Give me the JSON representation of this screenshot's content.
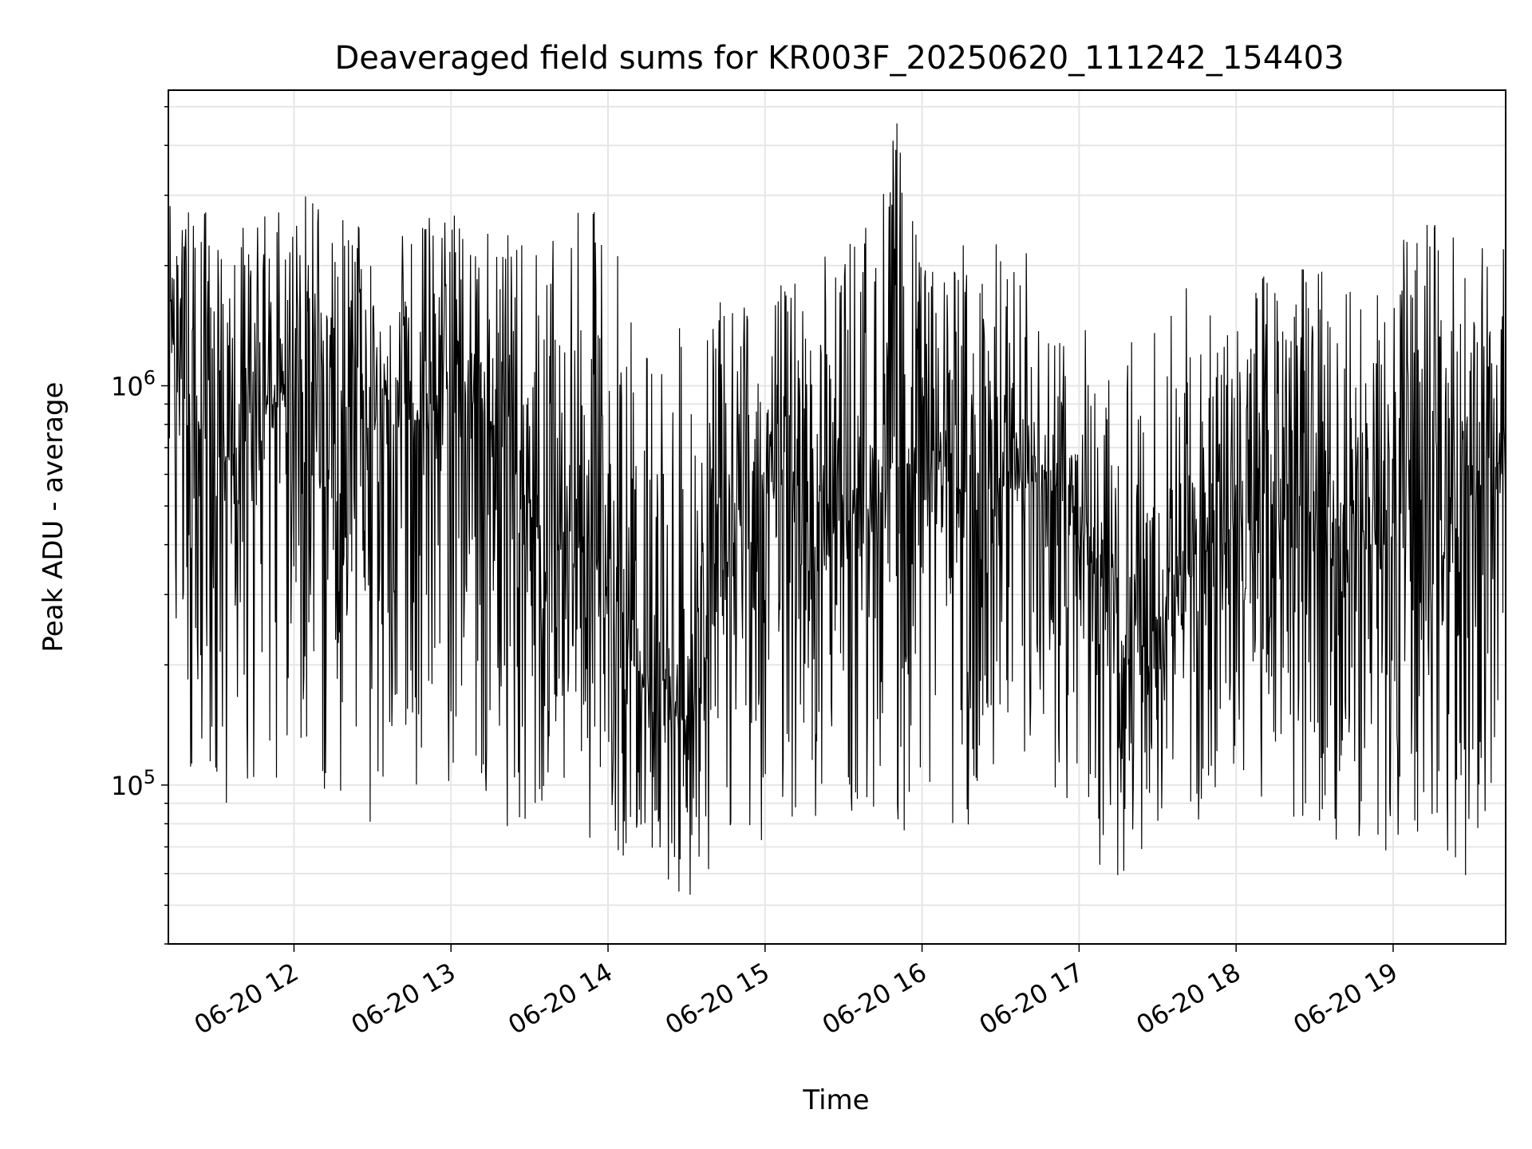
{
  "chart_data": {
    "type": "line",
    "title": "Deaveraged field sums for KR003F_20250620_111242_154403",
    "xlabel": "Time",
    "ylabel": "Peak ADU - average",
    "yscale": "log",
    "ylim": [
      40000,
      5500000
    ],
    "xlim": [
      "2025-06-20 11:12",
      "2025-06-20 19:43"
    ],
    "grid": true,
    "x_ticks": [
      {
        "value": "2025-06-20 12:00",
        "label": "06-20 12"
      },
      {
        "value": "2025-06-20 13:00",
        "label": "06-20 13"
      },
      {
        "value": "2025-06-20 14:00",
        "label": "06-20 14"
      },
      {
        "value": "2025-06-20 15:00",
        "label": "06-20 15"
      },
      {
        "value": "2025-06-20 16:00",
        "label": "06-20 16"
      },
      {
        "value": "2025-06-20 17:00",
        "label": "06-20 17"
      },
      {
        "value": "2025-06-20 18:00",
        "label": "06-20 18"
      },
      {
        "value": "2025-06-20 19:00",
        "label": "06-20 19"
      }
    ],
    "y_ticks": [
      {
        "value": 100000,
        "base": "10",
        "exp": "5"
      },
      {
        "value": 1000000,
        "base": "10",
        "exp": "6"
      }
    ],
    "line_color": "#000000",
    "series": [
      {
        "x": [
          "2025-06-20 11:12",
          "2025-06-20 11:20",
          "2025-06-20 11:30",
          "2025-06-20 11:40",
          "2025-06-20 11:50",
          "2025-06-20 12:00",
          "2025-06-20 12:10",
          "2025-06-20 12:20",
          "2025-06-20 12:30",
          "2025-06-20 12:40",
          "2025-06-20 12:50",
          "2025-06-20 13:00",
          "2025-06-20 13:10",
          "2025-06-20 13:20",
          "2025-06-20 13:30",
          "2025-06-20 13:40",
          "2025-06-20 13:50",
          "2025-06-20 14:00",
          "2025-06-20 14:10",
          "2025-06-20 14:20",
          "2025-06-20 14:30",
          "2025-06-20 14:40",
          "2025-06-20 14:50",
          "2025-06-20 15:00",
          "2025-06-20 15:10",
          "2025-06-20 15:20",
          "2025-06-20 15:30",
          "2025-06-20 15:40",
          "2025-06-20 15:50",
          "2025-06-20 16:00",
          "2025-06-20 16:10",
          "2025-06-20 16:20",
          "2025-06-20 16:30",
          "2025-06-20 16:40",
          "2025-06-20 16:50",
          "2025-06-20 17:00",
          "2025-06-20 17:10",
          "2025-06-20 17:20",
          "2025-06-20 17:30",
          "2025-06-20 17:40",
          "2025-06-20 17:50",
          "2025-06-20 18:00",
          "2025-06-20 18:10",
          "2025-06-20 18:20",
          "2025-06-20 18:30",
          "2025-06-20 18:40",
          "2025-06-20 18:50",
          "2025-06-20 19:00",
          "2025-06-20 19:10",
          "2025-06-20 19:20",
          "2025-06-20 19:30",
          "2025-06-20 19:43"
        ],
        "values": [
          1400000,
          800000,
          600000,
          700000,
          900000,
          1000000,
          1100000,
          900000,
          800000,
          850000,
          800000,
          1000000,
          900000,
          700000,
          500000,
          400000,
          450000,
          300000,
          200000,
          180000,
          150000,
          250000,
          450000,
          550000,
          600000,
          500000,
          450000,
          500000,
          600000,
          700000,
          600000,
          500000,
          550000,
          550000,
          600000,
          400000,
          300000,
          200000,
          250000,
          350000,
          400000,
          450000,
          550000,
          550000,
          500000,
          450000,
          400000,
          400000,
          500000,
          450000,
          600000,
          650000
        ],
        "min": [
          400000,
          100000,
          70000,
          100000,
          100000,
          100000,
          80000,
          100000,
          70000,
          100000,
          100000,
          100000,
          90000,
          80000,
          70000,
          100000,
          80000,
          60000,
          70000,
          60000,
          50000,
          60000,
          80000,
          70000,
          80000,
          80000,
          80000,
          80000,
          70000,
          90000,
          80000,
          70000,
          70000,
          80000,
          90000,
          90000,
          50000,
          60000,
          80000,
          90000,
          60000,
          80000,
          90000,
          80000,
          80000,
          70000,
          70000,
          60000,
          70000,
          70000,
          50000,
          170000
        ],
        "max": [
          2900000,
          2800000,
          2800000,
          2600000,
          2800000,
          3400000,
          3000000,
          2600000,
          2500000,
          2400000,
          2700000,
          2900000,
          2500000,
          2400000,
          2400000,
          2300000,
          2800000,
          2900000,
          1600000,
          1400000,
          1400000,
          1600000,
          1700000,
          1800000,
          1900000,
          2000000,
          2600000,
          2700000,
          4900000,
          2000000,
          2000000,
          3000000,
          2200000,
          2200000,
          1400000,
          1400000,
          1600000,
          1500000,
          1500000,
          1900000,
          1500000,
          1500000,
          2000000,
          2200000,
          2000000,
          2500000,
          2000000,
          2100000,
          2700000,
          2600000,
          2200000,
          2400000
        ]
      }
    ]
  }
}
